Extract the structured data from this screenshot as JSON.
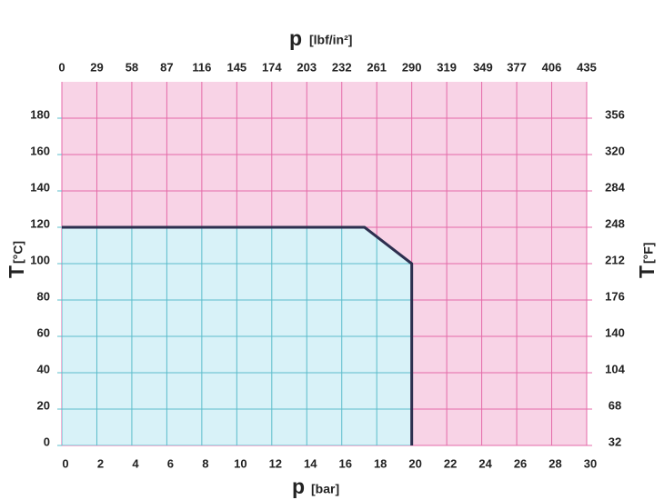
{
  "chart_data": {
    "type": "area",
    "x_label": "p",
    "x_unit": "[bar]",
    "x2_label": "p",
    "x2_unit": "[lbf/in²]",
    "y_label": "T",
    "y_unit": "[°C]",
    "y2_label": "T",
    "y2_unit": "[°F]",
    "x": [
      0,
      17.3,
      20,
      20
    ],
    "values": [
      120,
      120,
      100,
      0
    ],
    "xlim": [
      0,
      30
    ],
    "xticks": [
      0,
      2,
      4,
      6,
      8,
      10,
      12,
      14,
      16,
      18,
      20,
      22,
      24,
      26,
      28,
      30
    ],
    "x2lim": [
      0,
      435
    ],
    "x2ticks": [
      0,
      29,
      58,
      87,
      116,
      145,
      174,
      203,
      232,
      261,
      290,
      319,
      349,
      377,
      406,
      435
    ],
    "ylim": [
      0,
      200
    ],
    "yticks": [
      0,
      20,
      40,
      60,
      80,
      100,
      120,
      140,
      160,
      180
    ],
    "y2lim": [
      32,
      392
    ],
    "y2ticks": [
      32,
      68,
      104,
      140,
      176,
      212,
      248,
      284,
      320,
      356
    ],
    "grid": true,
    "background_color": "#f8d3e6",
    "fill_color": "#d8f2f8",
    "grid_color": "#e46aa8",
    "fill_grid_color": "#5bbccb",
    "line_color": "#2d2f4f"
  }
}
